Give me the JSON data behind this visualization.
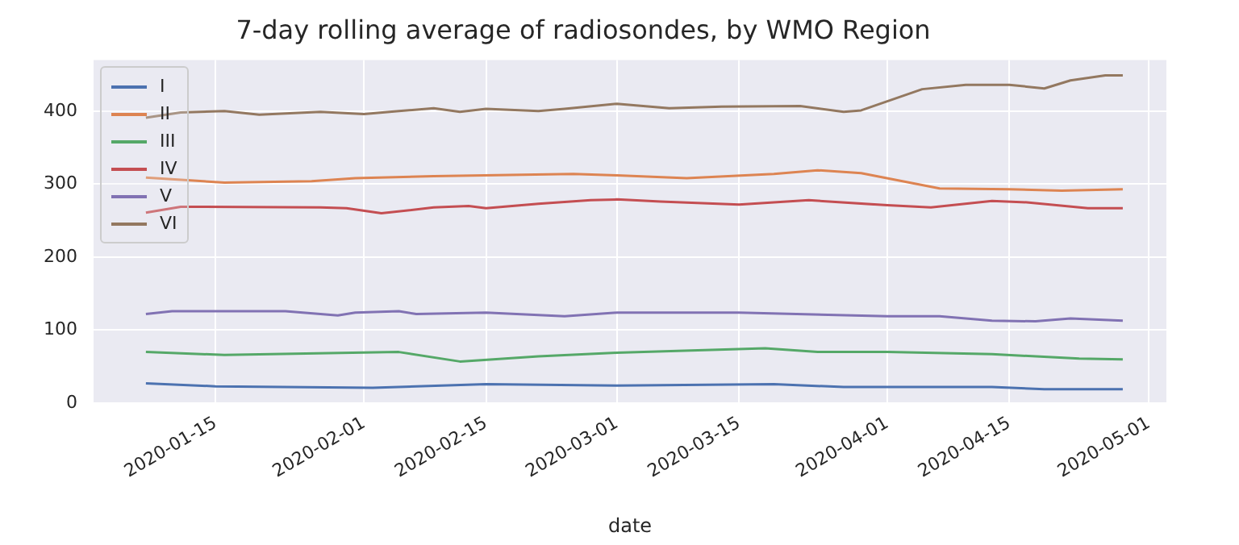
{
  "chart_data": {
    "type": "line",
    "title": "7-day rolling average of radiosondes, by WMO Region",
    "xlabel": "date",
    "xlim": [
      "2020-01-01",
      "2020-05-03"
    ],
    "xticks": [
      "2020-01-15",
      "2020-02-01",
      "2020-02-15",
      "2020-03-01",
      "2020-03-15",
      "2020-04-01",
      "2020-04-15",
      "2020-05-01"
    ],
    "ylim": [
      0,
      470
    ],
    "yticks": [
      0,
      100,
      200,
      300,
      400
    ],
    "grid": true,
    "legend": "top left",
    "marker": "none",
    "line_style": "solid",
    "series": [
      {
        "name": "I",
        "color": "#4c72b0",
        "x": [
          "2020-01-07",
          "2020-01-15",
          "2020-02-02",
          "2020-02-15",
          "2020-03-01",
          "2020-03-19",
          "2020-03-27",
          "2020-04-13",
          "2020-04-19",
          "2020-04-28"
        ],
        "values": [
          27,
          23,
          21,
          26,
          24,
          26,
          22,
          22,
          19,
          19
        ]
      },
      {
        "name": "II",
        "color": "#dd8452",
        "x": [
          "2020-01-07",
          "2020-01-16",
          "2020-01-26",
          "2020-01-31",
          "2020-02-09",
          "2020-02-25",
          "2020-03-01",
          "2020-03-09",
          "2020-03-19",
          "2020-03-24",
          "2020-03-29",
          "2020-04-07",
          "2020-04-15",
          "2020-04-21",
          "2020-04-28"
        ],
        "values": [
          309,
          302,
          304,
          308,
          311,
          314,
          312,
          308,
          314,
          319,
          315,
          294,
          293,
          291,
          293
        ]
      },
      {
        "name": "III",
        "color": "#55a868",
        "x": [
          "2020-01-07",
          "2020-01-16",
          "2020-02-05",
          "2020-02-12",
          "2020-02-21",
          "2020-03-01",
          "2020-03-18",
          "2020-03-24",
          "2020-04-01",
          "2020-04-13",
          "2020-04-23",
          "2020-04-28"
        ],
        "values": [
          70,
          66,
          70,
          57,
          64,
          69,
          75,
          70,
          70,
          67,
          61,
          60
        ]
      },
      {
        "name": "IV",
        "color": "#c44e52",
        "x": [
          "2020-01-07",
          "2020-01-11",
          "2020-01-27",
          "2020-01-30",
          "2020-02-03",
          "2020-02-09",
          "2020-02-13",
          "2020-02-15",
          "2020-02-21",
          "2020-02-27",
          "2020-03-01",
          "2020-03-06",
          "2020-03-15",
          "2020-03-23",
          "2020-04-01",
          "2020-04-06",
          "2020-04-13",
          "2020-04-17",
          "2020-04-24",
          "2020-04-28"
        ],
        "values": [
          261,
          269,
          268,
          267,
          260,
          268,
          270,
          267,
          273,
          278,
          279,
          276,
          272,
          278,
          271,
          268,
          277,
          275,
          267,
          267
        ]
      },
      {
        "name": "V",
        "color": "#8172b3",
        "x": [
          "2020-01-07",
          "2020-01-10",
          "2020-01-23",
          "2020-01-29",
          "2020-01-31",
          "2020-02-05",
          "2020-02-07",
          "2020-02-15",
          "2020-02-24",
          "2020-03-01",
          "2020-03-15",
          "2020-04-01",
          "2020-04-07",
          "2020-04-13",
          "2020-04-18",
          "2020-04-22",
          "2020-04-28"
        ],
        "values": [
          122,
          126,
          126,
          120,
          124,
          126,
          122,
          124,
          119,
          124,
          124,
          119,
          119,
          113,
          112,
          116,
          113
        ]
      },
      {
        "name": "VI",
        "color": "#937860",
        "x": [
          "2020-01-07",
          "2020-01-11",
          "2020-01-16",
          "2020-01-20",
          "2020-01-27",
          "2020-02-01",
          "2020-02-05",
          "2020-02-09",
          "2020-02-12",
          "2020-02-15",
          "2020-02-21",
          "2020-02-24",
          "2020-03-01",
          "2020-03-07",
          "2020-03-13",
          "2020-03-22",
          "2020-03-27",
          "2020-03-29",
          "2020-04-05",
          "2020-04-10",
          "2020-04-15",
          "2020-04-19",
          "2020-04-22",
          "2020-04-26",
          "2020-04-28"
        ],
        "values": [
          391,
          398,
          400,
          395,
          399,
          396,
          400,
          404,
          399,
          403,
          400,
          403,
          410,
          404,
          406,
          407,
          399,
          401,
          430,
          436,
          436,
          431,
          442,
          449,
          449
        ]
      }
    ]
  }
}
